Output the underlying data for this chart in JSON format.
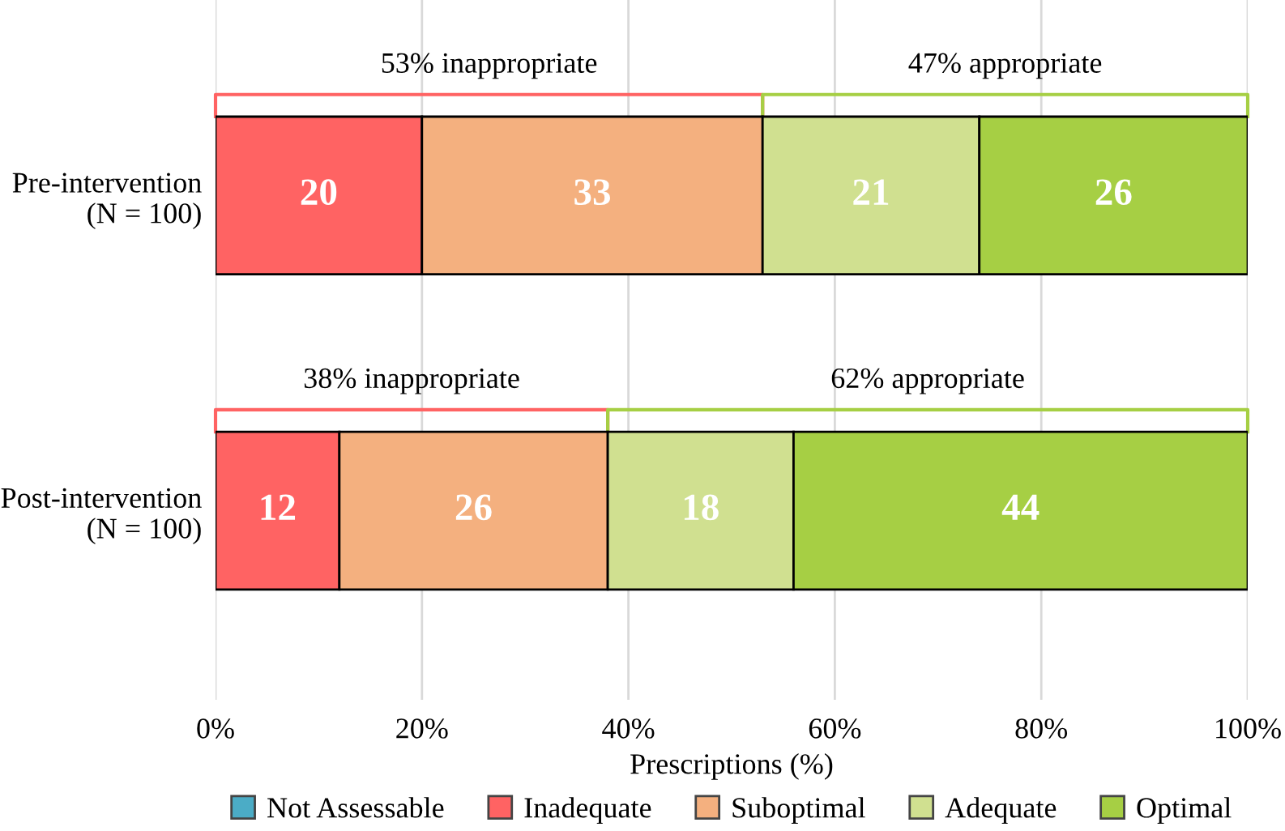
{
  "chart_data": {
    "type": "bar",
    "orientation": "horizontal",
    "stacked": true,
    "categories": [
      "Pre-intervention\n(N = 100)",
      "Post-intervention\n(N = 100)"
    ],
    "series": [
      {
        "name": "Not Assessable",
        "color": "#4bacc6",
        "values": [
          0,
          0
        ],
        "value_labels": [
          null,
          null
        ]
      },
      {
        "name": "Inadequate",
        "color": "#ff6363",
        "values": [
          20,
          12
        ],
        "value_labels": [
          "20",
          "12"
        ]
      },
      {
        "name": "Suboptimal",
        "color": "#f4b07f",
        "values": [
          33,
          26
        ],
        "value_labels": [
          "33",
          "26"
        ]
      },
      {
        "name": "Adequate",
        "color": "#d0e090",
        "values": [
          21,
          18
        ],
        "value_labels": [
          "21",
          "18"
        ]
      },
      {
        "name": "Optimal",
        "color": "#a6cf44",
        "values": [
          26,
          44
        ],
        "value_labels": [
          "26",
          "44"
        ]
      }
    ],
    "xlabel": "Prescriptions (%)",
    "xlim": [
      0,
      100
    ],
    "xticks": [
      {
        "value": 0,
        "label": "0%"
      },
      {
        "value": 20,
        "label": "20%"
      },
      {
        "value": 40,
        "label": "40%"
      },
      {
        "value": 60,
        "label": "60%"
      },
      {
        "value": 80,
        "label": "80%"
      },
      {
        "value": 100,
        "label": "100%"
      }
    ],
    "grid": "x",
    "legend": "bottom",
    "annotations": [
      "53% inappropriate",
      "47% appropriate",
      "38% inappropriate",
      "62% appropriate"
    ]
  }
}
